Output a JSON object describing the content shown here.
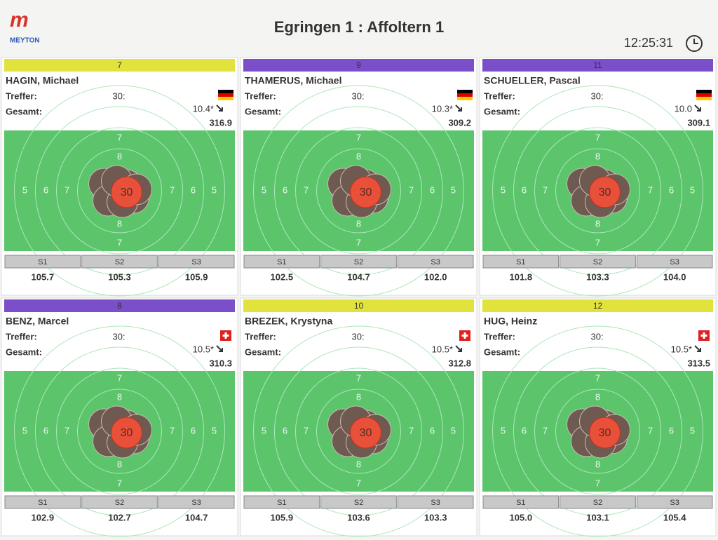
{
  "header": {
    "logo": "MEYTON",
    "title": "Egringen 1 : Affoltern 1",
    "time": "12:25:31"
  },
  "labels": {
    "hits": "Treffer:",
    "total": "Gesamt:",
    "series": [
      "S1",
      "S2",
      "S3"
    ]
  },
  "ring_labels": [
    "5",
    "6",
    "7",
    "8"
  ],
  "panels": [
    {
      "lane": "7",
      "color": "#e2e23c",
      "name": "HAGIN, Michael",
      "flag": "DE",
      "shots": "30:",
      "last": "10.4*",
      "total": "316.9",
      "last_shot_no": "30",
      "series": [
        "105.7",
        "105.3",
        "105.9"
      ]
    },
    {
      "lane": "9",
      "color": "#7b4fc9",
      "name": "THAMERUS, Michael",
      "flag": "DE",
      "shots": "30:",
      "last": "10.3*",
      "total": "309.2",
      "last_shot_no": "30",
      "series": [
        "102.5",
        "104.7",
        "102.0"
      ]
    },
    {
      "lane": "11",
      "color": "#7b4fc9",
      "name": "SCHUELLER, Pascal",
      "flag": "DE",
      "shots": "30:",
      "last": "10.0",
      "total": "309.1",
      "last_shot_no": "30",
      "series": [
        "101.8",
        "103.3",
        "104.0"
      ]
    },
    {
      "lane": "8",
      "color": "#7b4fc9",
      "name": "BENZ, Marcel",
      "flag": "CH",
      "shots": "30:",
      "last": "10.5*",
      "total": "310.3",
      "last_shot_no": "30",
      "series": [
        "102.9",
        "102.7",
        "104.7"
      ]
    },
    {
      "lane": "10",
      "color": "#e2e23c",
      "name": "BREZEK, Krystyna",
      "flag": "CH",
      "shots": "30:",
      "last": "10.5*",
      "total": "312.8",
      "last_shot_no": "30",
      "series": [
        "105.9",
        "103.6",
        "103.3"
      ]
    },
    {
      "lane": "12",
      "color": "#e2e23c",
      "name": "HUG, Heinz",
      "flag": "CH",
      "shots": "30:",
      "last": "10.5*",
      "total": "313.5",
      "last_shot_no": "30",
      "series": [
        "105.0",
        "103.1",
        "105.4"
      ]
    }
  ]
}
